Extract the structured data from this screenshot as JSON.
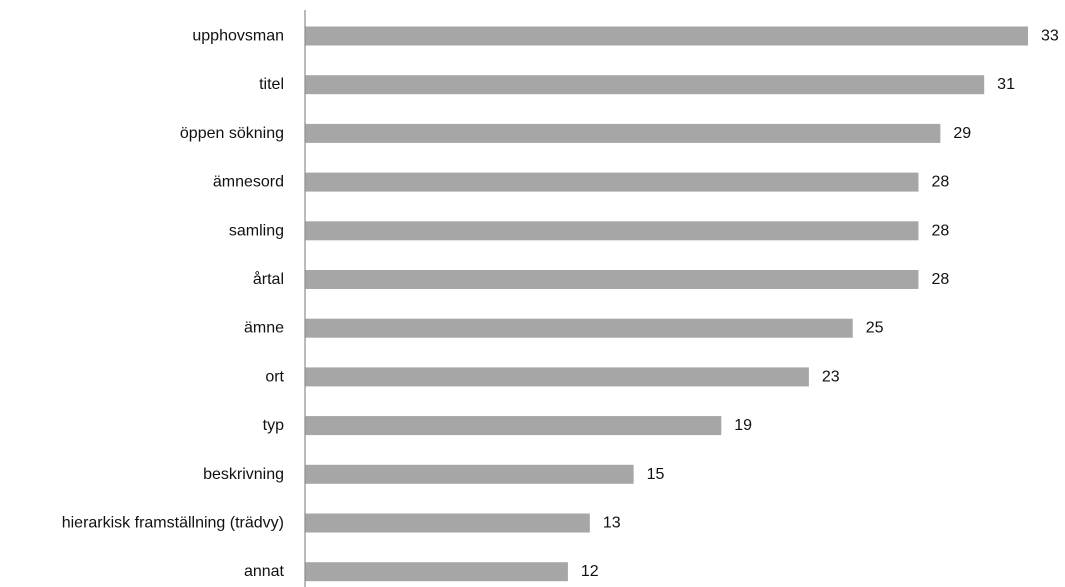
{
  "chart_data": {
    "type": "bar",
    "orientation": "horizontal",
    "categories": [
      "upphovsman",
      "titel",
      "öppen sökning",
      "ämnesord",
      "samling",
      "årtal",
      "ämne",
      "ort",
      "typ",
      "beskrivning",
      "hierarkisk framställning (trädvy)",
      "annat"
    ],
    "values": [
      33,
      31,
      29,
      28,
      28,
      28,
      25,
      23,
      19,
      15,
      13,
      12
    ],
    "title": "",
    "xlabel": "",
    "ylabel": "",
    "xlim": [
      0,
      33
    ],
    "grid": false,
    "legend": "none",
    "bar_color": "#a6a6a6",
    "axis_color": "#8c8c8c",
    "text_color": "#111111"
  }
}
